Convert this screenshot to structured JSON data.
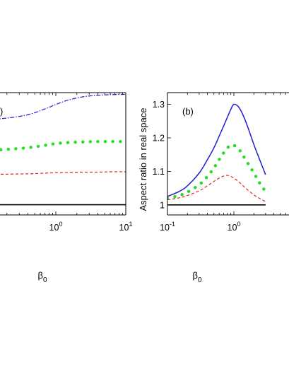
{
  "chart_data": [
    {
      "panel": "a",
      "type": "line",
      "panel_label": ")",
      "title": "",
      "xlabel": "β",
      "xlabel_sub": "0",
      "ylabel": "",
      "xscale": "log",
      "xlim": [
        0.1,
        10
      ],
      "ylim": [
        0.97,
        1.33
      ],
      "xticks": [
        {
          "value": 1,
          "base": "10",
          "exp": "0"
        },
        {
          "value": 10,
          "base": "10",
          "exp": "1"
        }
      ],
      "yticks": [],
      "grid": false,
      "legend": "none",
      "series": [
        {
          "style": "dash-dot",
          "color": "#1f1fd0",
          "x": [
            0.1,
            0.2,
            0.4,
            0.7,
            1.0,
            1.5,
            2.5,
            4.0,
            6.0,
            10.0
          ],
          "y": [
            1.25,
            1.255,
            1.265,
            1.282,
            1.295,
            1.308,
            1.318,
            1.322,
            1.324,
            1.325
          ]
        },
        {
          "style": "dotted",
          "color": "#22dd22",
          "x": [
            0.1,
            0.2,
            0.4,
            0.7,
            1.0,
            1.5,
            2.5,
            4.0,
            6.0,
            10.0
          ],
          "y": [
            1.16,
            1.163,
            1.168,
            1.175,
            1.18,
            1.183,
            1.185,
            1.186,
            1.186,
            1.186
          ]
        },
        {
          "style": "dashed",
          "color": "#e02020",
          "x": [
            0.1,
            0.2,
            0.4,
            0.7,
            1.0,
            1.5,
            2.5,
            4.0,
            6.0,
            10.0
          ],
          "y": [
            1.09,
            1.09,
            1.091,
            1.093,
            1.094,
            1.095,
            1.096,
            1.096,
            1.097,
            1.097
          ]
        },
        {
          "style": "solid",
          "color": "#000000",
          "x": [
            0.1,
            10.0
          ],
          "y": [
            1.0,
            1.0
          ]
        }
      ]
    },
    {
      "panel": "b",
      "type": "line",
      "panel_label": "(b)",
      "title": "",
      "xlabel": "β",
      "xlabel_sub": "0",
      "ylabel": "Aspect ratio in real space",
      "xscale": "log",
      "xlim": [
        0.1,
        10
      ],
      "ylim": [
        0.97,
        1.335
      ],
      "xticks": [
        {
          "value": 0.1,
          "base": "10",
          "exp": "-1"
        },
        {
          "value": 1,
          "base": "10",
          "exp": "0"
        }
      ],
      "yticks": [
        {
          "value": 1,
          "label": "1"
        },
        {
          "value": 1.1,
          "label": "1.1"
        },
        {
          "value": 1.2,
          "label": "1.2"
        },
        {
          "value": 1.3,
          "label": "1.3"
        }
      ],
      "grid": false,
      "legend": "none",
      "series": [
        {
          "style": "solid",
          "color": "#1f1fd0",
          "x": [
            0.1,
            0.15,
            0.2,
            0.3,
            0.4,
            0.5,
            0.6,
            0.7,
            0.8,
            0.9,
            1.0,
            1.2,
            1.5,
            2.0,
            2.5,
            3.0
          ],
          "y": [
            1.025,
            1.04,
            1.057,
            1.095,
            1.135,
            1.17,
            1.205,
            1.235,
            1.262,
            1.285,
            1.3,
            1.29,
            1.25,
            1.18,
            1.13,
            1.09
          ]
        },
        {
          "style": "dotted",
          "color": "#22dd22",
          "x": [
            0.1,
            0.15,
            0.2,
            0.3,
            0.4,
            0.5,
            0.6,
            0.7,
            0.8,
            0.9,
            1.0,
            1.2,
            1.5,
            2.0,
            2.5,
            3.0
          ],
          "y": [
            1.02,
            1.028,
            1.038,
            1.06,
            1.085,
            1.11,
            1.135,
            1.155,
            1.17,
            1.178,
            1.178,
            1.165,
            1.135,
            1.095,
            1.062,
            1.04
          ]
        },
        {
          "style": "dashed",
          "color": "#e02020",
          "x": [
            0.1,
            0.15,
            0.2,
            0.3,
            0.4,
            0.5,
            0.6,
            0.7,
            0.8,
            0.9,
            1.0,
            1.2,
            1.5,
            2.0,
            2.5,
            3.0
          ],
          "y": [
            1.015,
            1.021,
            1.028,
            1.042,
            1.057,
            1.07,
            1.08,
            1.086,
            1.088,
            1.085,
            1.08,
            1.068,
            1.05,
            1.03,
            1.018,
            1.01
          ]
        },
        {
          "style": "solid",
          "color": "#000000",
          "x": [
            0.1,
            3.0
          ],
          "y": [
            1.0,
            1.0
          ]
        }
      ]
    }
  ]
}
